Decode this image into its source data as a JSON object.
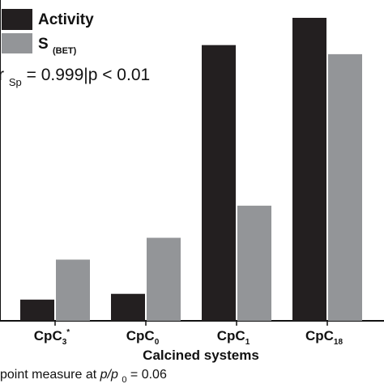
{
  "chart_data": {
    "type": "bar",
    "categories": [
      {
        "base": "CpC",
        "sub": "3",
        "sup": "*"
      },
      {
        "base": "CpC",
        "sub": "0",
        "sup": ""
      },
      {
        "base": "CpC",
        "sub": "1",
        "sup": ""
      },
      {
        "base": "CpC",
        "sub": "18",
        "sup": ""
      }
    ],
    "series": [
      {
        "name": "Activity",
        "name_sub": "",
        "color": "#231f20",
        "values": [
          7.0,
          8.9,
          91.0,
          100.0
        ]
      },
      {
        "name": "S",
        "name_sub": "(BET)",
        "color": "#939598",
        "values": [
          20.2,
          27.4,
          38.0,
          88.0
        ]
      }
    ],
    "xlabel": "Calcined systems",
    "ylim": [
      0,
      100
    ],
    "legend_position": "top-left",
    "annotation": {
      "prefix": "r",
      "prefix_sub": "Sp",
      "text": " =  0.999|p < 0.01"
    },
    "footnote": {
      "lead": "point measure at ",
      "var": "p/p",
      "var_sub": "0",
      "tail": " = 0.06"
    }
  }
}
